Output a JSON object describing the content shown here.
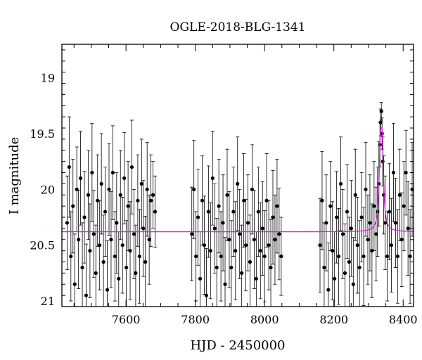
{
  "chart_data": {
    "type": "scatter",
    "title": "OGLE-2018-BLG-1341",
    "xlabel": "HJD - 2450000",
    "ylabel": "I magnitude",
    "xlim": [
      7415,
      8430
    ],
    "ylim": [
      21.05,
      18.7
    ],
    "y_inverted": true,
    "x_ticks": [
      7600,
      7800,
      8000,
      8200,
      8400
    ],
    "y_ticks": [
      19,
      19.5,
      20,
      20.5,
      21
    ],
    "x_tick_labels": [
      "7600",
      "7800",
      "8000",
      "8200",
      "8400"
    ],
    "y_tick_labels": [
      "19",
      "19.5",
      "20",
      "20.5",
      "21"
    ],
    "grid": false,
    "series": [
      {
        "kind": "points_with_errorbars",
        "marker_color": "#000000",
        "points": [
          {
            "x": 7430,
            "y": 20.3,
            "err": 0.42
          },
          {
            "x": 7436,
            "y": 19.8,
            "err": 0.45
          },
          {
            "x": 7441,
            "y": 20.6,
            "err": 0.4
          },
          {
            "x": 7447,
            "y": 20.15,
            "err": 0.42
          },
          {
            "x": 7452,
            "y": 20.85,
            "err": 0.45
          },
          {
            "x": 7458,
            "y": 20.0,
            "err": 0.38
          },
          {
            "x": 7463,
            "y": 20.45,
            "err": 0.44
          },
          {
            "x": 7469,
            "y": 19.9,
            "err": 0.42
          },
          {
            "x": 7474,
            "y": 20.7,
            "err": 0.4
          },
          {
            "x": 7480,
            "y": 20.25,
            "err": 0.41
          },
          {
            "x": 7485,
            "y": 20.95,
            "err": 0.46
          },
          {
            "x": 7491,
            "y": 20.05,
            "err": 0.4
          },
          {
            "x": 7496,
            "y": 20.55,
            "err": 0.42
          },
          {
            "x": 7502,
            "y": 19.85,
            "err": 0.44
          },
          {
            "x": 7507,
            "y": 20.4,
            "err": 0.39
          },
          {
            "x": 7513,
            "y": 20.75,
            "err": 0.43
          },
          {
            "x": 7518,
            "y": 20.1,
            "err": 0.41
          },
          {
            "x": 7524,
            "y": 20.5,
            "err": 0.4
          },
          {
            "x": 7529,
            "y": 19.95,
            "err": 0.45
          },
          {
            "x": 7535,
            "y": 20.65,
            "err": 0.42
          },
          {
            "x": 7540,
            "y": 20.2,
            "err": 0.4
          },
          {
            "x": 7546,
            "y": 20.9,
            "err": 0.44
          },
          {
            "x": 7551,
            "y": 20.0,
            "err": 0.41
          },
          {
            "x": 7557,
            "y": 20.45,
            "err": 0.43
          },
          {
            "x": 7562,
            "y": 19.85,
            "err": 0.42
          },
          {
            "x": 7568,
            "y": 20.6,
            "err": 0.4
          },
          {
            "x": 7573,
            "y": 20.3,
            "err": 0.45
          },
          {
            "x": 7579,
            "y": 20.8,
            "err": 0.42
          },
          {
            "x": 7584,
            "y": 20.05,
            "err": 0.4
          },
          {
            "x": 7590,
            "y": 20.5,
            "err": 0.43
          },
          {
            "x": 7595,
            "y": 19.9,
            "err": 0.41
          },
          {
            "x": 7601,
            "y": 20.7,
            "err": 0.42
          },
          {
            "x": 7606,
            "y": 20.15,
            "err": 0.4
          },
          {
            "x": 7612,
            "y": 20.55,
            "err": 0.44
          },
          {
            "x": 7617,
            "y": 19.8,
            "err": 0.42
          },
          {
            "x": 7623,
            "y": 20.4,
            "err": 0.4
          },
          {
            "x": 7628,
            "y": 20.75,
            "err": 0.43
          },
          {
            "x": 7634,
            "y": 20.1,
            "err": 0.41
          },
          {
            "x": 7639,
            "y": 20.6,
            "err": 0.42
          },
          {
            "x": 7645,
            "y": 19.95,
            "err": 0.4
          },
          {
            "x": 7650,
            "y": 20.35,
            "err": 0.43
          },
          {
            "x": 7656,
            "y": 20.65,
            "err": 0.41
          },
          {
            "x": 7661,
            "y": 20.0,
            "err": 0.42
          },
          {
            "x": 7667,
            "y": 20.45,
            "err": 0.4
          },
          {
            "x": 7672,
            "y": 20.1,
            "err": 0.41
          },
          {
            "x": 7678,
            "y": 20.05,
            "err": 0.3
          },
          {
            "x": 7684,
            "y": 20.2,
            "err": 0.32
          },
          {
            "x": 7790,
            "y": 20.4,
            "err": 0.42
          },
          {
            "x": 7796,
            "y": 20.0,
            "err": 0.44
          },
          {
            "x": 7802,
            "y": 20.6,
            "err": 0.4
          },
          {
            "x": 7808,
            "y": 20.25,
            "err": 0.43
          },
          {
            "x": 7814,
            "y": 20.8,
            "err": 0.42
          },
          {
            "x": 7820,
            "y": 20.1,
            "err": 0.4
          },
          {
            "x": 7826,
            "y": 20.5,
            "err": 0.44
          },
          {
            "x": 7832,
            "y": 20.95,
            "err": 0.42
          },
          {
            "x": 7838,
            "y": 20.2,
            "err": 0.41
          },
          {
            "x": 7844,
            "y": 20.55,
            "err": 0.43
          },
          {
            "x": 7850,
            "y": 19.9,
            "err": 0.42
          },
          {
            "x": 7856,
            "y": 20.35,
            "err": 0.4
          },
          {
            "x": 7862,
            "y": 20.7,
            "err": 0.44
          },
          {
            "x": 7868,
            "y": 20.15,
            "err": 0.42
          },
          {
            "x": 7874,
            "y": 20.6,
            "err": 0.4
          },
          {
            "x": 7880,
            "y": 20.3,
            "err": 0.43
          },
          {
            "x": 7886,
            "y": 20.85,
            "err": 0.42
          },
          {
            "x": 7892,
            "y": 20.05,
            "err": 0.41
          },
          {
            "x": 7898,
            "y": 20.45,
            "err": 0.43
          },
          {
            "x": 7904,
            "y": 20.7,
            "err": 0.42
          },
          {
            "x": 7910,
            "y": 20.2,
            "err": 0.4
          },
          {
            "x": 7916,
            "y": 20.55,
            "err": 0.44
          },
          {
            "x": 7922,
            "y": 19.95,
            "err": 0.42
          },
          {
            "x": 7928,
            "y": 20.4,
            "err": 0.4
          },
          {
            "x": 7934,
            "y": 20.75,
            "err": 0.43
          },
          {
            "x": 7940,
            "y": 20.1,
            "err": 0.42
          },
          {
            "x": 7946,
            "y": 20.5,
            "err": 0.41
          },
          {
            "x": 7952,
            "y": 20.3,
            "err": 0.43
          },
          {
            "x": 7958,
            "y": 20.65,
            "err": 0.42
          },
          {
            "x": 7964,
            "y": 20.0,
            "err": 0.4
          },
          {
            "x": 7970,
            "y": 20.45,
            "err": 0.44
          },
          {
            "x": 7976,
            "y": 20.8,
            "err": 0.42
          },
          {
            "x": 7982,
            "y": 20.2,
            "err": 0.4
          },
          {
            "x": 7988,
            "y": 20.55,
            "err": 0.43
          },
          {
            "x": 7994,
            "y": 20.35,
            "err": 0.42
          },
          {
            "x": 8000,
            "y": 20.6,
            "err": 0.41
          },
          {
            "x": 8006,
            "y": 20.1,
            "err": 0.42
          },
          {
            "x": 8012,
            "y": 20.5,
            "err": 0.4
          },
          {
            "x": 8018,
            "y": 20.7,
            "err": 0.43
          },
          {
            "x": 8024,
            "y": 20.25,
            "err": 0.42
          },
          {
            "x": 8030,
            "y": 20.45,
            "err": 0.4
          },
          {
            "x": 8036,
            "y": 20.15,
            "err": 0.42
          },
          {
            "x": 8042,
            "y": 20.4,
            "err": 0.41
          },
          {
            "x": 8048,
            "y": 20.6,
            "err": 0.35
          },
          {
            "x": 8160,
            "y": 20.5,
            "err": 0.42
          },
          {
            "x": 8166,
            "y": 20.1,
            "err": 0.44
          },
          {
            "x": 8172,
            "y": 20.7,
            "err": 0.4
          },
          {
            "x": 8178,
            "y": 20.3,
            "err": 0.43
          },
          {
            "x": 8184,
            "y": 20.9,
            "err": 0.42
          },
          {
            "x": 8190,
            "y": 20.15,
            "err": 0.4
          },
          {
            "x": 8196,
            "y": 20.55,
            "err": 0.44
          },
          {
            "x": 8202,
            "y": 20.8,
            "err": 0.42
          },
          {
            "x": 8208,
            "y": 20.25,
            "err": 0.41
          },
          {
            "x": 8214,
            "y": 20.6,
            "err": 0.43
          },
          {
            "x": 8220,
            "y": 19.95,
            "err": 0.42
          },
          {
            "x": 8226,
            "y": 20.4,
            "err": 0.4
          },
          {
            "x": 8232,
            "y": 20.75,
            "err": 0.44
          },
          {
            "x": 8238,
            "y": 20.2,
            "err": 0.42
          },
          {
            "x": 8244,
            "y": 20.65,
            "err": 0.4
          },
          {
            "x": 8250,
            "y": 20.35,
            "err": 0.43
          },
          {
            "x": 8256,
            "y": 20.85,
            "err": 0.42
          },
          {
            "x": 8262,
            "y": 20.05,
            "err": 0.41
          },
          {
            "x": 8268,
            "y": 20.5,
            "err": 0.43
          },
          {
            "x": 8274,
            "y": 20.7,
            "err": 0.42
          },
          {
            "x": 8280,
            "y": 20.25,
            "err": 0.4
          },
          {
            "x": 8286,
            "y": 20.6,
            "err": 0.44
          },
          {
            "x": 8292,
            "y": 20.0,
            "err": 0.42
          },
          {
            "x": 8298,
            "y": 20.45,
            "err": 0.4
          },
          {
            "x": 8304,
            "y": 20.3,
            "err": 0.43
          },
          {
            "x": 8310,
            "y": 20.55,
            "err": 0.42
          },
          {
            "x": 8316,
            "y": 20.15,
            "err": 0.4
          },
          {
            "x": 8322,
            "y": 20.4,
            "err": 0.42
          },
          {
            "x": 8326,
            "y": 20.2,
            "err": 0.4
          },
          {
            "x": 8330,
            "y": 19.95,
            "err": 0.38
          },
          {
            "x": 8333,
            "y": 19.6,
            "err": 0.2
          },
          {
            "x": 8335,
            "y": 19.4,
            "err": 0.12
          },
          {
            "x": 8337,
            "y": 19.3,
            "err": 0.08
          },
          {
            "x": 8339,
            "y": 19.5,
            "err": 0.14
          },
          {
            "x": 8341,
            "y": 19.75,
            "err": 0.22
          },
          {
            "x": 8344,
            "y": 20.05,
            "err": 0.35
          },
          {
            "x": 8348,
            "y": 20.3,
            "err": 0.42
          },
          {
            "x": 8354,
            "y": 20.6,
            "err": 0.4
          },
          {
            "x": 8360,
            "y": 20.2,
            "err": 0.43
          },
          {
            "x": 8366,
            "y": 20.5,
            "err": 0.42
          },
          {
            "x": 8372,
            "y": 19.85,
            "err": 0.44
          },
          {
            "x": 8378,
            "y": 20.3,
            "err": 0.4
          },
          {
            "x": 8384,
            "y": 20.6,
            "err": 0.42
          },
          {
            "x": 8390,
            "y": 20.05,
            "err": 0.41
          },
          {
            "x": 8396,
            "y": 20.45,
            "err": 0.42
          },
          {
            "x": 8402,
            "y": 20.15,
            "err": 0.4
          },
          {
            "x": 8408,
            "y": 19.85,
            "err": 0.38
          },
          {
            "x": 8414,
            "y": 20.35,
            "err": 0.42
          },
          {
            "x": 8420,
            "y": 20.6,
            "err": 0.42
          },
          {
            "x": 8426,
            "y": 20.0,
            "err": 0.42
          }
        ]
      },
      {
        "kind": "model_curve",
        "color": "#cc22cc",
        "baseline": 20.38,
        "peak_time": 8337,
        "peak_magnitude": 19.45,
        "effective_width_days": 6
      }
    ]
  }
}
